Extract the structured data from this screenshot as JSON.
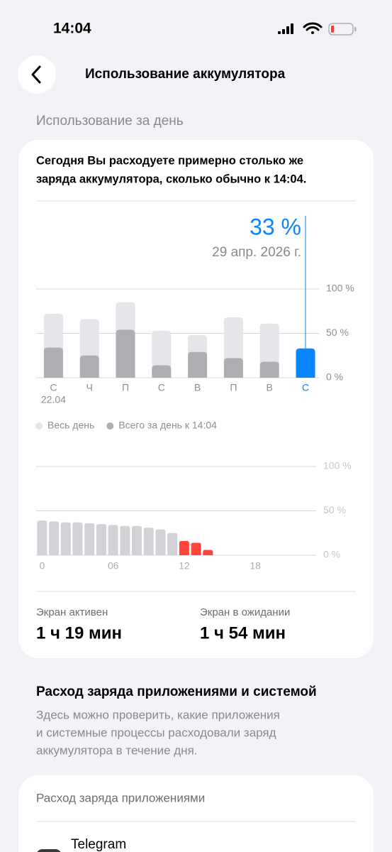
{
  "status_bar": {
    "time": "14:04"
  },
  "header": {
    "title": "Использование аккумулятора"
  },
  "daily_section": {
    "title": "Использование за день",
    "summary_lines": [
      "Сегодня Вы расходуете примерно столько же",
      "заряда аккумулятора, сколько обычно к 14:04."
    ]
  },
  "daily_chart": {
    "type": "bar",
    "categories": [
      "С",
      "Ч",
      "П",
      "С",
      "В",
      "П",
      "В",
      "С"
    ],
    "first_date": "22.04",
    "series": [
      {
        "name": "Весь день",
        "color": "#e5e5ea",
        "values": [
          72,
          66,
          85,
          53,
          48,
          68,
          61,
          null
        ]
      },
      {
        "name": "Всего за день к 14:04",
        "color": "#aeaeb2",
        "values": [
          34,
          25,
          54,
          14,
          29,
          22,
          18,
          33
        ],
        "value_labels": [
          null,
          null,
          null,
          null,
          null,
          null,
          null,
          "33 %"
        ]
      }
    ],
    "highlight_index": 7,
    "highlight_color": "#0a84ff",
    "highlight_date": "29 апр. 2026 г.",
    "ylim": [
      0,
      100
    ],
    "yticks": [
      {
        "value": 0,
        "label": "0 %"
      },
      {
        "value": 50,
        "label": "50 %"
      },
      {
        "value": 100,
        "label": "100 %"
      }
    ],
    "grid": true
  },
  "hourly_chart": {
    "type": "bar",
    "x": [
      0,
      1,
      2,
      3,
      4,
      5,
      6,
      7,
      8,
      9,
      10,
      11,
      12,
      13,
      14
    ],
    "values": [
      39,
      38,
      37,
      37,
      36,
      35,
      34,
      33,
      33,
      31,
      29,
      25,
      16,
      14,
      6
    ],
    "colors": [
      "#d1d1d6",
      "#d1d1d6",
      "#d1d1d6",
      "#d1d1d6",
      "#d1d1d6",
      "#d1d1d6",
      "#d1d1d6",
      "#d1d1d6",
      "#d1d1d6",
      "#d1d1d6",
      "#d1d1d6",
      "#d1d1d6",
      "#ff453a",
      "#ff453a",
      "#ff453a"
    ],
    "xlim": [
      -0.5,
      23.5
    ],
    "xticks": [
      0,
      {
        "value": 6,
        "label": "06"
      },
      12,
      18
    ],
    "ylim": [
      0,
      100
    ],
    "yticks": [
      {
        "value": 0,
        "label": "0 %"
      },
      {
        "value": 50,
        "label": "50 %"
      },
      {
        "value": 100,
        "label": "100 %"
      }
    ],
    "grid": true
  },
  "screen": [
    {
      "label": "Экран активен",
      "value": "1 ч 19 мин"
    },
    {
      "label": "Экран в ожидании",
      "value": "1 ч 54 мин"
    }
  ],
  "apps_section": {
    "title": "Расход заряда приложениями и системой",
    "description_lines": [
      "Здесь можно проверить, какие приложения",
      "и системные процессы расходовали заряд",
      "аккумулятора в течение дня."
    ],
    "card_title": "Расход заряда приложениями",
    "apps": [
      {
        "name": "Telegram"
      }
    ]
  }
}
